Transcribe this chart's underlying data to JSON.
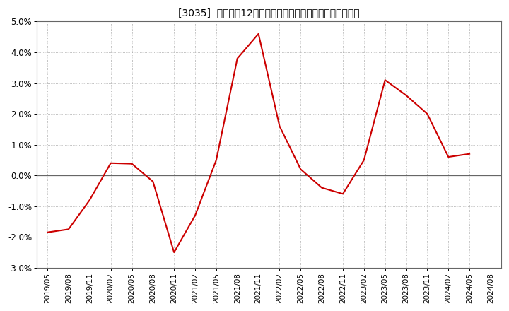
{
  "title": "[3035]  尺上高の12か月移動合計の対前年同期増減率の推移",
  "line_color": "#cc0000",
  "background_color": "#ffffff",
  "plot_bg_color": "#ffffff",
  "grid_color": "#aaaaaa",
  "ylim": [
    -0.03,
    0.05
  ],
  "yticks": [
    -0.03,
    -0.02,
    -0.01,
    0.0,
    0.01,
    0.02,
    0.03,
    0.04,
    0.05
  ],
  "dates": [
    "2019/05",
    "2019/08",
    "2019/11",
    "2020/02",
    "2020/05",
    "2020/08",
    "2020/11",
    "2021/02",
    "2021/05",
    "2021/08",
    "2021/11",
    "2022/02",
    "2022/05",
    "2022/08",
    "2022/11",
    "2023/02",
    "2023/05",
    "2023/08",
    "2023/11",
    "2024/02",
    "2024/05",
    "2024/08"
  ],
  "values": [
    -0.0185,
    -0.0175,
    -0.008,
    0.004,
    0.0038,
    -0.002,
    -0.025,
    -0.013,
    0.005,
    0.038,
    0.046,
    0.016,
    0.002,
    -0.004,
    -0.006,
    0.005,
    0.031,
    0.026,
    0.02,
    0.006,
    0.007,
    null
  ],
  "xtick_labels": [
    "2019/05",
    "2019/08",
    "2019/11",
    "2020/02",
    "2020/05",
    "2020/08",
    "2020/11",
    "2021/02",
    "2021/05",
    "2021/08",
    "2021/11",
    "2022/02",
    "2022/05",
    "2022/08",
    "2022/11",
    "2023/02",
    "2023/05",
    "2023/08",
    "2023/11",
    "2024/02",
    "2024/05",
    "2024/08"
  ]
}
